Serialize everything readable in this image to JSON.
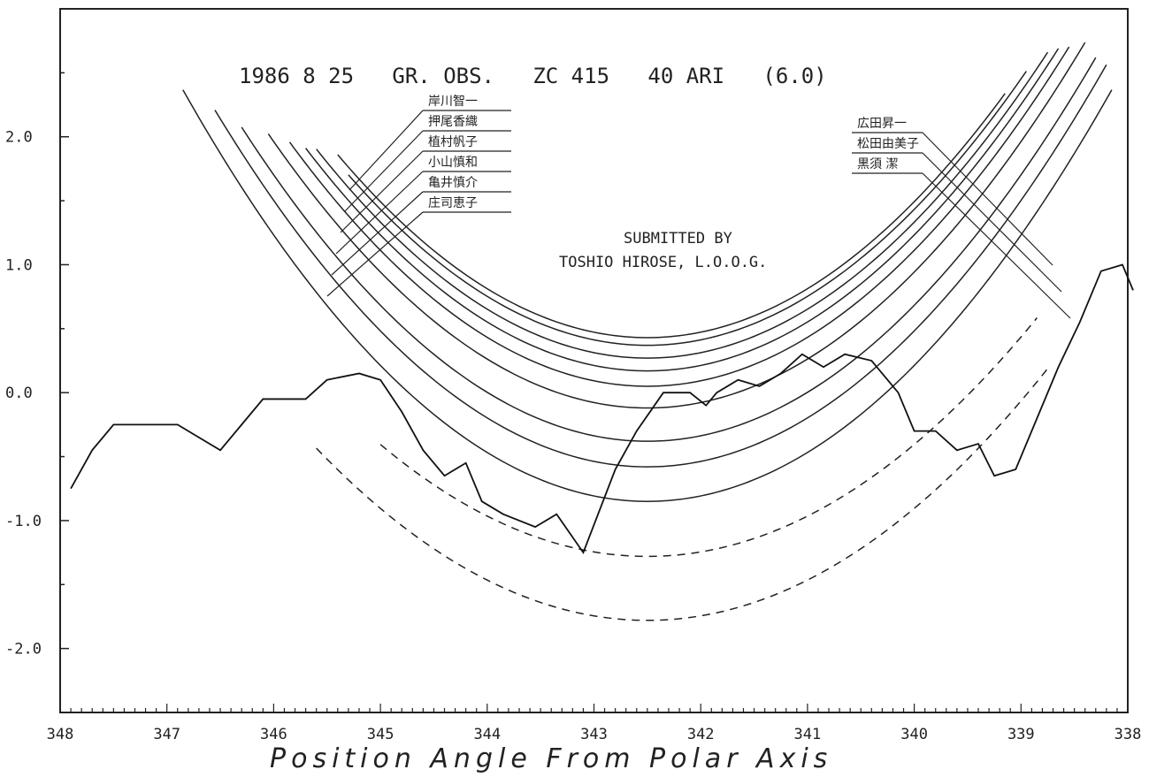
{
  "chart_data": {
    "type": "line",
    "title": "1986 8 25   GR. OBS.   ZC 415   40 ARI   (6.0)",
    "subtitle_lines": [
      "SUBMITTED BY",
      "TOSHIO HIROSE,  L.O.O.G."
    ],
    "xlabel": "Position Angle From Polar Axis",
    "ylabel": "",
    "xlim": [
      348,
      338
    ],
    "ylim": [
      -2.5,
      3.0
    ],
    "x_reversed": true,
    "grid": false,
    "x_ticks": [
      348,
      347,
      346,
      345,
      344,
      343,
      342,
      341,
      340,
      339,
      338
    ],
    "x_tick_labels": [
      "348",
      "347",
      "346",
      "345",
      "344",
      "343",
      "342",
      "341",
      "340",
      "339",
      "338"
    ],
    "y_ticks": [
      2.0,
      1.0,
      0.0,
      -1.0,
      -2.0
    ],
    "y_tick_labels": [
      "2.0",
      "1.0",
      "0.0",
      "-1.0",
      "-2.0"
    ],
    "profile": {
      "x": [
        347.9,
        347.7,
        347.5,
        347.3,
        346.9,
        346.7,
        346.5,
        346.3,
        346.1,
        345.85,
        345.7,
        345.5,
        345.2,
        345.0,
        344.8,
        344.6,
        344.4,
        344.2,
        344.05,
        343.85,
        343.55,
        343.35,
        343.1,
        342.8,
        342.6,
        342.35,
        342.1,
        341.95,
        341.85,
        341.65,
        341.45,
        341.25,
        341.05,
        340.85,
        340.65,
        340.4,
        340.15,
        340.0,
        339.8,
        339.6,
        339.4,
        339.25,
        339.05,
        338.85,
        338.65,
        338.45,
        338.25,
        338.05,
        337.95
      ],
      "y": [
        -0.75,
        -0.45,
        -0.25,
        -0.25,
        -0.25,
        -0.35,
        -0.45,
        -0.25,
        -0.05,
        -0.05,
        -0.05,
        0.1,
        0.15,
        0.1,
        -0.15,
        -0.45,
        -0.65,
        -0.55,
        -0.85,
        -0.95,
        -1.05,
        -0.95,
        -1.25,
        -0.6,
        -0.3,
        0.0,
        0.0,
        -0.1,
        0.0,
        0.1,
        0.05,
        0.15,
        0.3,
        0.2,
        0.3,
        0.25,
        0.0,
        -0.3,
        -0.3,
        -0.45,
        -0.4,
        -0.65,
        -0.6,
        -0.2,
        0.2,
        0.55,
        0.95,
        1.0,
        0.8
      ]
    },
    "observer_labels": [
      "岸川智一",
      "押尾香織",
      "植村帆子",
      "小山慎和",
      "亀井慎介",
      "庄司恵子"
    ],
    "observer_labels_right": [
      "広田昇一",
      "松田由美子",
      "黒須 潔"
    ],
    "tracks_solid": [
      {
        "x": [
          345.55,
          345.0,
          344.5,
          344.0,
          343.5,
          343.0,
          342.5,
          342.2,
          342.0
        ]
      },
      {
        "x": [
          345.7,
          345.2,
          344.8,
          344.3,
          343.8,
          343.3,
          342.8,
          342.6,
          342.4
        ]
      },
      {
        "x": [
          345.95,
          345.4,
          345.0,
          344.5,
          344.0,
          343.6,
          343.2,
          342.9,
          342.6
        ]
      },
      {
        "x": [
          346.15,
          345.6,
          345.1,
          344.6,
          344.2,
          343.8,
          343.4,
          343.0,
          342.7
        ]
      },
      {
        "x": [
          346.35,
          345.8,
          345.3,
          344.9,
          344.4,
          344.0,
          343.5,
          343.2,
          343.1
        ]
      }
    ],
    "tracks_dashed": [
      {
        "x": [
          345.7,
          345.0,
          344.5,
          344.0,
          343.5,
          343.0,
          342.5,
          342.0,
          341.5,
          341.0,
          340.5,
          340.0,
          339.5,
          339.0,
          338.6
        ]
      }
    ],
    "annotations": [
      "1986 8 25   GR. OBS.   ZC 415   40 ARI   (6.0)"
    ]
  }
}
